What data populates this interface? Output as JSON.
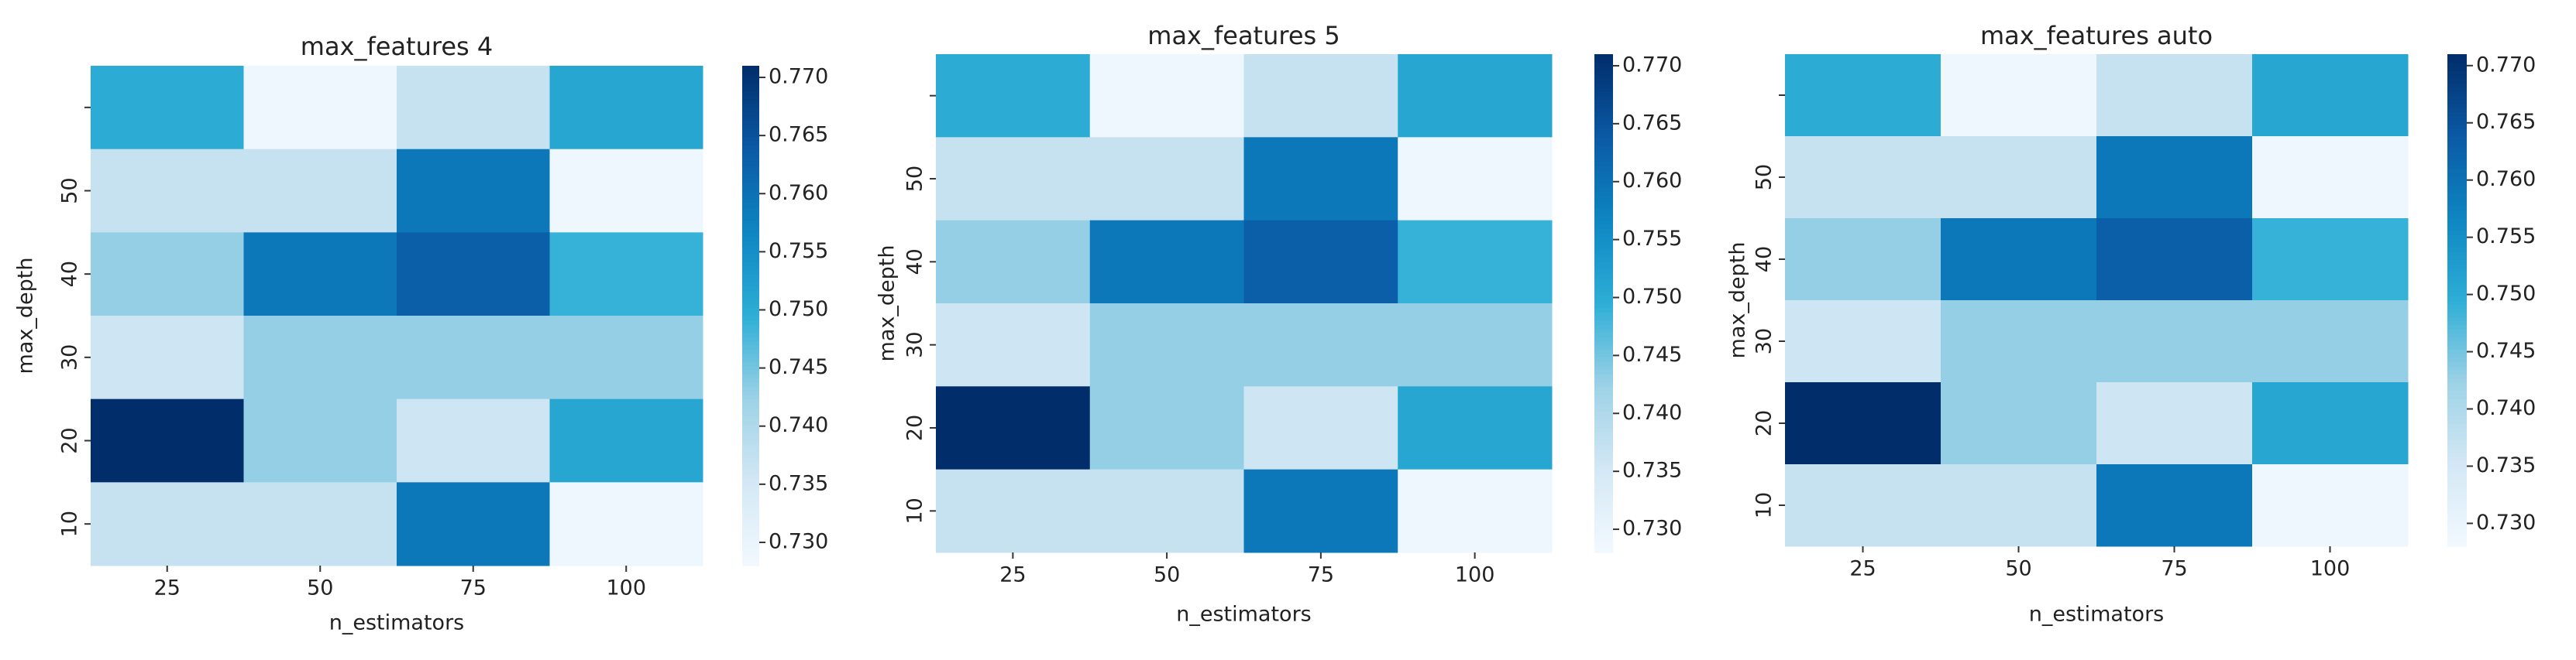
{
  "chart_data": [
    {
      "type": "heatmap",
      "title": "max_features 4",
      "xlabel": "n_estimators",
      "ylabel": "max_depth",
      "x": [
        25,
        50,
        75,
        100
      ],
      "y": [
        null,
        50,
        40,
        30,
        20,
        10
      ],
      "z": [
        [
          0.75,
          0.729,
          0.737,
          0.751
        ],
        [
          0.737,
          0.737,
          0.759,
          0.729
        ],
        [
          0.743,
          0.759,
          0.763,
          0.749
        ],
        [
          0.736,
          0.743,
          0.743,
          0.743
        ],
        [
          0.771,
          0.743,
          0.736,
          0.751
        ],
        [
          0.737,
          0.737,
          0.759,
          0.729
        ]
      ],
      "zlim": [
        0.728,
        0.771
      ],
      "zticks": [
        {
          "value": 0.73,
          "label": "0.730"
        },
        {
          "value": 0.735,
          "label": "0.735"
        },
        {
          "value": 0.74,
          "label": "0.740"
        },
        {
          "value": 0.745,
          "label": "0.745"
        },
        {
          "value": 0.75,
          "label": "0.750"
        },
        {
          "value": 0.755,
          "label": "0.755"
        },
        {
          "value": 0.76,
          "label": "0.760"
        },
        {
          "value": 0.765,
          "label": "0.765"
        },
        {
          "value": 0.77,
          "label": "0.770"
        }
      ],
      "colormap": [
        "#f2f9fe",
        "#d4e8f5",
        "#9ed2e6",
        "#2eaed6",
        "#0e86c2",
        "#0b5aa5",
        "#012d6b"
      ]
    },
    {
      "type": "heatmap",
      "title": "max_features 5",
      "xlabel": "n_estimators",
      "ylabel": "max_depth",
      "x": [
        25,
        50,
        75,
        100
      ],
      "y": [
        null,
        50,
        40,
        30,
        20,
        10
      ],
      "z": [
        [
          0.75,
          0.729,
          0.737,
          0.751
        ],
        [
          0.737,
          0.737,
          0.759,
          0.729
        ],
        [
          0.743,
          0.759,
          0.763,
          0.749
        ],
        [
          0.736,
          0.743,
          0.743,
          0.743
        ],
        [
          0.771,
          0.743,
          0.736,
          0.751
        ],
        [
          0.737,
          0.737,
          0.759,
          0.729
        ]
      ],
      "zlim": [
        0.728,
        0.771
      ],
      "zticks": [
        {
          "value": 0.73,
          "label": "0.730"
        },
        {
          "value": 0.735,
          "label": "0.735"
        },
        {
          "value": 0.74,
          "label": "0.740"
        },
        {
          "value": 0.745,
          "label": "0.745"
        },
        {
          "value": 0.75,
          "label": "0.750"
        },
        {
          "value": 0.755,
          "label": "0.755"
        },
        {
          "value": 0.76,
          "label": "0.760"
        },
        {
          "value": 0.765,
          "label": "0.765"
        },
        {
          "value": 0.77,
          "label": "0.770"
        }
      ],
      "colormap": [
        "#f2f9fe",
        "#d4e8f5",
        "#9ed2e6",
        "#2eaed6",
        "#0e86c2",
        "#0b5aa5",
        "#012d6b"
      ]
    },
    {
      "type": "heatmap",
      "title": "max_features auto",
      "xlabel": "n_estimators",
      "ylabel": "max_depth",
      "x": [
        25,
        50,
        75,
        100
      ],
      "y": [
        null,
        50,
        40,
        30,
        20,
        10
      ],
      "z": [
        [
          0.75,
          0.729,
          0.737,
          0.751
        ],
        [
          0.737,
          0.737,
          0.759,
          0.729
        ],
        [
          0.743,
          0.759,
          0.763,
          0.749
        ],
        [
          0.736,
          0.743,
          0.743,
          0.743
        ],
        [
          0.771,
          0.743,
          0.736,
          0.751
        ],
        [
          0.737,
          0.737,
          0.759,
          0.729
        ]
      ],
      "zlim": [
        0.728,
        0.771
      ],
      "zticks": [
        {
          "value": 0.73,
          "label": "0.730"
        },
        {
          "value": 0.735,
          "label": "0.735"
        },
        {
          "value": 0.74,
          "label": "0.740"
        },
        {
          "value": 0.745,
          "label": "0.745"
        },
        {
          "value": 0.75,
          "label": "0.750"
        },
        {
          "value": 0.755,
          "label": "0.755"
        },
        {
          "value": 0.76,
          "label": "0.760"
        },
        {
          "value": 0.765,
          "label": "0.765"
        },
        {
          "value": 0.77,
          "label": "0.770"
        }
      ],
      "colormap": [
        "#f2f9fe",
        "#d4e8f5",
        "#9ed2e6",
        "#2eaed6",
        "#0e86c2",
        "#0b5aa5",
        "#012d6b"
      ]
    }
  ]
}
